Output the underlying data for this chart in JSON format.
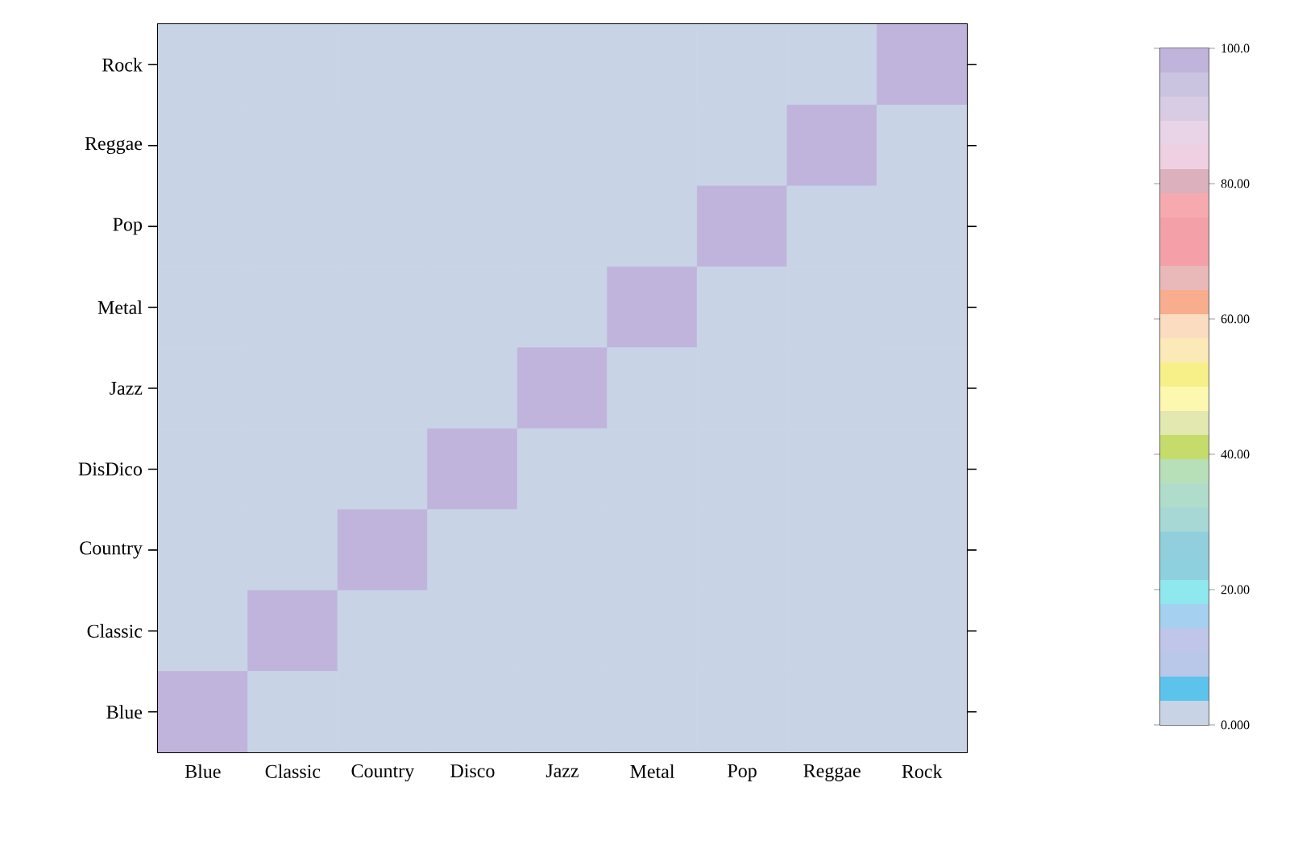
{
  "chart_data": {
    "type": "heatmap",
    "categories": [
      "Blue",
      "Classic",
      "Country",
      "Disco",
      "Jazz",
      "Metal",
      "Pop",
      "Reggae",
      "Rock"
    ],
    "y_categories": [
      "Rock",
      "Reggae",
      "Pop",
      "Metal",
      "Jazz",
      "DisDico",
      "Country",
      "Classic",
      "Blue"
    ],
    "cells": [
      [
        0,
        0,
        0,
        0,
        0,
        0,
        0,
        0,
        100
      ],
      [
        0,
        0,
        0,
        0,
        0,
        0,
        0,
        100,
        0
      ],
      [
        0,
        0,
        0,
        0,
        0,
        0,
        100,
        0,
        0
      ],
      [
        0,
        0,
        0,
        0,
        0,
        100,
        0,
        0,
        0
      ],
      [
        0,
        0,
        0,
        0,
        100,
        0,
        0,
        0,
        0
      ],
      [
        0,
        0,
        0,
        100,
        0,
        0,
        0,
        0,
        0
      ],
      [
        0,
        0,
        100,
        0,
        0,
        0,
        0,
        0,
        0
      ],
      [
        0,
        100,
        0,
        0,
        0,
        0,
        0,
        0,
        0
      ],
      [
        100,
        0,
        0,
        0,
        0,
        0,
        0,
        0,
        0
      ]
    ],
    "clim": [
      0,
      100
    ],
    "cticks": [
      {
        "value": 0,
        "label": "0.000"
      },
      {
        "value": 20,
        "label": "20.00"
      },
      {
        "value": 40,
        "label": "40.00"
      },
      {
        "value": 60,
        "label": "60.00"
      },
      {
        "value": 80,
        "label": "80.00"
      },
      {
        "value": 100,
        "label": "100.0"
      }
    ]
  }
}
